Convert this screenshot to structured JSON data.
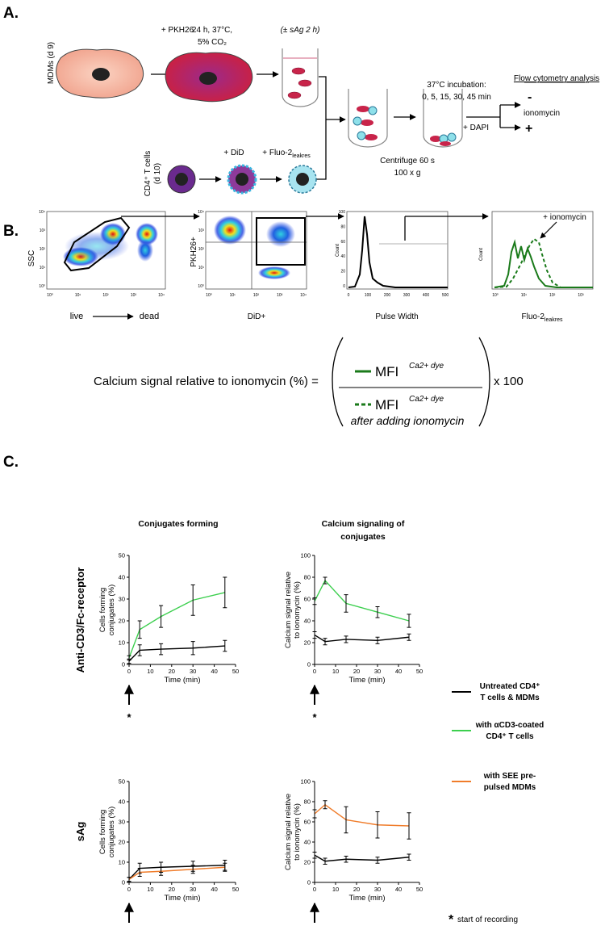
{
  "panel_a": {
    "label": "A.",
    "mdm_label": "MDMs (d 9)",
    "pkh26": "+ PKH26",
    "incubation": [
      "24 h, 37°C,",
      "5% CO₂"
    ],
    "sag": "(± sAg 2 h)",
    "tcell_label": [
      "CD4⁺ T cells",
      "(d 10)"
    ],
    "did": "+ DiD",
    "fluo": "+ Fluo-2",
    "fluo_sub": "leakres",
    "timecourse": [
      "37°C incubation:",
      "0, 5, 15, 30, 45 min"
    ],
    "centrifuge": [
      "Centrifuge 60 s",
      "100 x g"
    ],
    "dapi": "+ DAPI",
    "flow": "Flow cytometry analysis",
    "minus": "-",
    "ionomycin": "ionomycin",
    "plus": "+"
  },
  "panel_b": {
    "label": "B.",
    "ssc": "SSC",
    "live": "live",
    "dead": "dead",
    "pkh26": "PKH26+",
    "did": "DiD+",
    "count": "Count",
    "pulse_width": "Pulse Width",
    "fluo": "Fluo-2",
    "fluo_sub": "leakres",
    "ionomycin": "+ ionomycin",
    "log_ticks": [
      "10⁰",
      "10¹",
      "10²",
      "10³",
      "10⁴"
    ],
    "width_ticks": [
      "0",
      "100",
      "200",
      "300",
      "400",
      "500"
    ],
    "count_ticks": [
      "0",
      "20",
      "40",
      "60",
      "80",
      "100"
    ]
  },
  "formula": {
    "lhs": "Calcium signal relative to ionomycin (%) =",
    "mfi": "MFI",
    "dye": "Ca2+ dye",
    "after": "after adding ionomycin",
    "times": "x 100"
  },
  "panel_c": {
    "label": "C.",
    "row_labels": [
      "Anti-CD3/Fc-receptor",
      "sAg"
    ],
    "start_marker": "*",
    "legend": [
      {
        "label": [
          "Untreated CD4⁺",
          "T cells & MDMs"
        ],
        "color": "#000000"
      },
      {
        "label": [
          "with αCD3-coated",
          "CD4⁺ T cells"
        ],
        "color": "#3ccf4e"
      },
      {
        "label": [
          "with SEE pre-",
          "pulsed MDMs"
        ],
        "color": "#f07c2a"
      }
    ],
    "footnote_mark": "*",
    "footnote": "start of recording"
  },
  "chart_data": [
    {
      "type": "line",
      "title": [
        "Conjugates forming"
      ],
      "x": [
        0,
        5,
        15,
        30,
        45
      ],
      "xlim": [
        0,
        50
      ],
      "xticks": [
        0,
        10,
        20,
        30,
        40,
        50
      ],
      "ylim": [
        0,
        50
      ],
      "yticks": [
        0,
        10,
        20,
        30,
        40,
        50
      ],
      "xlabel": "Time (min)",
      "ylabel": [
        "Cells forming",
        "conjugates (%)"
      ],
      "series": [
        {
          "color": "#000000",
          "values": [
            1.5,
            6.5,
            7,
            7.5,
            8.5
          ],
          "errors": [
            1,
            2.5,
            2.5,
            3,
            2.5
          ]
        },
        {
          "color": "#3ccf4e",
          "values": [
            3,
            16,
            22,
            29.5,
            33
          ],
          "errors": [
            1,
            4,
            5,
            7,
            7
          ]
        }
      ]
    },
    {
      "type": "line",
      "title": [
        "Calcium signaling of",
        "conjugates"
      ],
      "x": [
        0,
        5,
        15,
        30,
        45
      ],
      "xlim": [
        0,
        50
      ],
      "xticks": [
        0,
        10,
        20,
        30,
        40,
        50
      ],
      "ylim": [
        0,
        100
      ],
      "yticks": [
        0,
        20,
        40,
        60,
        80,
        100
      ],
      "xlabel": "Time (min)",
      "ylabel": [
        "Calcium signal relative",
        "to ionomycin (%)"
      ],
      "series": [
        {
          "color": "#000000",
          "values": [
            27,
            21,
            23,
            22,
            25
          ],
          "errors": [
            3,
            3,
            3,
            3,
            3
          ]
        },
        {
          "color": "#3ccf4e",
          "values": [
            58,
            77,
            56,
            48,
            40
          ],
          "errors": [
            3,
            3,
            8,
            5,
            6
          ]
        }
      ]
    },
    {
      "type": "line",
      "x": [
        0,
        5,
        15,
        30,
        45
      ],
      "xlim": [
        0,
        50
      ],
      "xticks": [
        0,
        10,
        20,
        30,
        40,
        50
      ],
      "ylim": [
        0,
        50
      ],
      "yticks": [
        0,
        10,
        20,
        30,
        40,
        50
      ],
      "xlabel": "Time (min)",
      "ylabel": [
        "Cells forming",
        "conjugates (%)"
      ],
      "series": [
        {
          "color": "#000000",
          "values": [
            1.5,
            7,
            7.5,
            8,
            8.5
          ],
          "errors": [
            1,
            2.5,
            2.5,
            2.5,
            2.5
          ]
        },
        {
          "color": "#f07c2a",
          "values": [
            1.5,
            5,
            5.5,
            6.5,
            7.5
          ],
          "errors": [
            1,
            2,
            2,
            2,
            2
          ]
        }
      ]
    },
    {
      "type": "line",
      "x": [
        0,
        5,
        15,
        30,
        45
      ],
      "xlim": [
        0,
        50
      ],
      "xticks": [
        0,
        10,
        20,
        30,
        40,
        50
      ],
      "ylim": [
        0,
        100
      ],
      "yticks": [
        0,
        20,
        40,
        60,
        80,
        100
      ],
      "xlabel": "Time (min)",
      "ylabel": [
        "Calcium signal relative",
        "to ionomycin (%)"
      ],
      "series": [
        {
          "color": "#000000",
          "values": [
            27,
            21,
            23,
            22,
            25
          ],
          "errors": [
            3,
            3,
            3,
            3,
            3
          ]
        },
        {
          "color": "#f07c2a",
          "values": [
            68,
            77,
            62,
            57,
            56
          ],
          "errors": [
            4,
            4,
            13,
            13,
            13
          ]
        }
      ]
    }
  ]
}
